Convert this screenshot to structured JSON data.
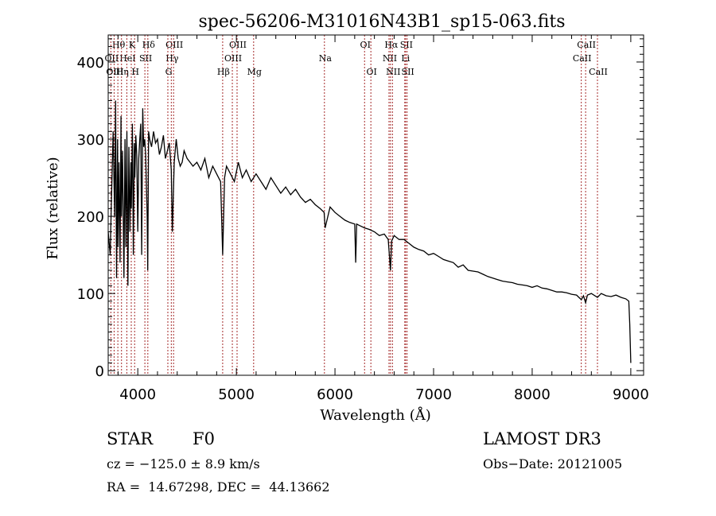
{
  "chart_data": {
    "type": "line",
    "title": "spec-56206-M31016N43B1_sp15-063.fits",
    "xlabel": "Wavelength (Å)",
    "ylabel": "Flux (relative)",
    "xlim": [
      3700,
      9130
    ],
    "ylim": [
      -6,
      435
    ],
    "xticks": [
      4000,
      5000,
      6000,
      7000,
      8000,
      9000
    ],
    "yticks": [
      0,
      100,
      200,
      300,
      400
    ],
    "grid": false,
    "series": [
      {
        "name": "flux",
        "color": "#000000",
        "x": [
          3700,
          3720,
          3735,
          3750,
          3765,
          3775,
          3785,
          3795,
          3800,
          3810,
          3820,
          3830,
          3835,
          3845,
          3860,
          3870,
          3880,
          3890,
          3900,
          3910,
          3920,
          3930,
          3935,
          3945,
          3955,
          3965,
          3970,
          3980,
          3990,
          4000,
          4010,
          4020,
          4030,
          4040,
          4050,
          4060,
          4070,
          4080,
          4095,
          4101,
          4110,
          4120,
          4140,
          4160,
          4180,
          4200,
          4220,
          4240,
          4260,
          4280,
          4300,
          4320,
          4340,
          4350,
          4370,
          4390,
          4410,
          4430,
          4450,
          4470,
          4500,
          4530,
          4560,
          4600,
          4640,
          4680,
          4720,
          4760,
          4800,
          4840,
          4861,
          4880,
          4900,
          4940,
          4980,
          5020,
          5060,
          5100,
          5150,
          5200,
          5250,
          5300,
          5350,
          5400,
          5450,
          5500,
          5550,
          5600,
          5650,
          5700,
          5750,
          5800,
          5850,
          5890,
          5900,
          5950,
          6000,
          6050,
          6100,
          6150,
          6200,
          6210,
          6220,
          6250,
          6300,
          6350,
          6400,
          6450,
          6500,
          6540,
          6563,
          6575,
          6600,
          6650,
          6700,
          6750,
          6800,
          6850,
          6900,
          6950,
          7000,
          7050,
          7100,
          7150,
          7200,
          7250,
          7300,
          7350,
          7400,
          7450,
          7500,
          7550,
          7600,
          7650,
          7700,
          7750,
          7800,
          7850,
          7900,
          7950,
          8000,
          8050,
          8100,
          8150,
          8200,
          8250,
          8300,
          8350,
          8400,
          8450,
          8498,
          8520,
          8542,
          8560,
          8600,
          8662,
          8700,
          8750,
          8800,
          8850,
          8900,
          8950,
          8980,
          8990,
          9000
        ],
        "y": [
          180,
          150,
          230,
          310,
          200,
          350,
          120,
          300,
          160,
          270,
          140,
          330,
          200,
          285,
          120,
          300,
          160,
          310,
          110,
          290,
          180,
          270,
          210,
          320,
          150,
          295,
          250,
          305,
          280,
          180,
          275,
          300,
          320,
          150,
          340,
          290,
          300,
          280,
          200,
          130,
          310,
          300,
          290,
          310,
          295,
          300,
          280,
          290,
          305,
          275,
          285,
          295,
          260,
          180,
          270,
          300,
          275,
          265,
          270,
          285,
          275,
          270,
          265,
          270,
          260,
          275,
          250,
          265,
          255,
          245,
          150,
          250,
          265,
          255,
          245,
          270,
          250,
          260,
          245,
          255,
          245,
          235,
          250,
          240,
          230,
          238,
          228,
          235,
          225,
          218,
          222,
          215,
          210,
          205,
          185,
          212,
          205,
          200,
          195,
          192,
          190,
          140,
          190,
          188,
          185,
          183,
          180,
          175,
          177,
          170,
          130,
          168,
          175,
          170,
          170,
          165,
          160,
          157,
          155,
          150,
          152,
          148,
          144,
          142,
          140,
          134,
          137,
          130,
          129,
          128,
          125,
          122,
          120,
          118,
          116,
          115,
          114,
          112,
          111,
          110,
          108,
          110,
          107,
          106,
          104,
          102,
          102,
          101,
          99,
          98,
          92,
          97,
          88,
          98,
          100,
          95,
          100,
          97,
          96,
          98,
          95,
          93,
          90,
          60,
          10
        ]
      }
    ],
    "line_markers": {
      "color": "#a52a2a",
      "rows": [
        [
          {
            "label": "Hθ",
            "wave": 3798
          },
          {
            "label": "K",
            "wave": 3934
          },
          {
            "label": "Hδ",
            "wave": 4102
          },
          {
            "label": "OIII",
            "wave": 4363
          },
          {
            "label": "OIII",
            "wave": 5007
          },
          {
            "label": "OI",
            "wave": 6300
          },
          {
            "label": "Hα",
            "wave": 6563
          },
          {
            "label": "SII",
            "wave": 6716
          },
          {
            "label": "CaII",
            "wave": 8542
          }
        ],
        [
          {
            "label": "OII",
            "wave": 3727
          },
          {
            "label": "HeI",
            "wave": 3889
          },
          {
            "label": "SII",
            "wave": 4072
          },
          {
            "label": "Hγ",
            "wave": 4340
          },
          {
            "label": "OIII",
            "wave": 4959
          },
          {
            "label": "Na",
            "wave": 5893
          },
          {
            "label": "NII",
            "wave": 6548
          },
          {
            "label": "Li",
            "wave": 6708
          },
          {
            "label": "CaII",
            "wave": 8498
          }
        ],
        [
          {
            "label": "OIII",
            "wave": 3760
          },
          {
            "label": "Hη",
            "wave": 3835
          },
          {
            "label": "H",
            "wave": 3968
          },
          {
            "label": "G",
            "wave": 4305
          },
          {
            "label": "Hβ",
            "wave": 4861
          },
          {
            "label": "Mg",
            "wave": 5175
          },
          {
            "label": "OI",
            "wave": 6364
          },
          {
            "label": "NII",
            "wave": 6583
          },
          {
            "label": "SII",
            "wave": 6731
          },
          {
            "label": "CaII",
            "wave": 8662
          }
        ]
      ]
    }
  },
  "info": {
    "object_class": "STAR",
    "subclass": "F0",
    "survey": "LAMOST DR3",
    "redshift": "cz = −125.0 ± 8.9 km/s",
    "obs_date": "Obs−Date: 20121005",
    "coords": "RA =  14.67298, DEC =  44.13662"
  }
}
